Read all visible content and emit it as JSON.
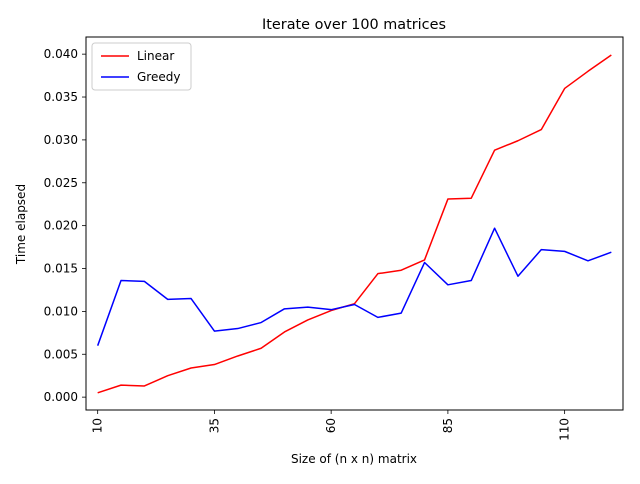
{
  "chart_data": {
    "type": "line",
    "title": "Iterate over 100 matrices",
    "xlabel": "Size of (n x n) matrix",
    "ylabel": "Time elapsed",
    "x": [
      10,
      15,
      20,
      25,
      30,
      35,
      40,
      45,
      50,
      55,
      60,
      65,
      70,
      75,
      80,
      85,
      90,
      95,
      100,
      105,
      110,
      115,
      120
    ],
    "xlim": [
      7.5,
      122.5
    ],
    "ylim": [
      -0.0015,
      0.042
    ],
    "xticks": [
      10,
      35,
      60,
      85,
      110
    ],
    "xtick_labels": [
      "10",
      "35",
      "60",
      "85",
      "110"
    ],
    "yticks": [
      0,
      0.005,
      0.01,
      0.015,
      0.02,
      0.025,
      0.03,
      0.035,
      0.04
    ],
    "ytick_labels": [
      "0.000",
      "0.005",
      "0.010",
      "0.015",
      "0.020",
      "0.025",
      "0.030",
      "0.035",
      "0.040"
    ],
    "grid": false,
    "legend_position": "top-left",
    "series": [
      {
        "name": "Linear",
        "color": "#ff0000",
        "values": [
          0.0005,
          0.0014,
          0.0013,
          0.0025,
          0.0034,
          0.0038,
          0.0048,
          0.0057,
          0.0076,
          0.009,
          0.0101,
          0.0109,
          0.0144,
          0.0148,
          0.016,
          0.0231,
          0.0232,
          0.0288,
          0.0299,
          0.0312,
          0.036,
          0.038,
          0.0399
        ]
      },
      {
        "name": "Greedy",
        "color": "#0000ff",
        "values": [
          0.006,
          0.0136,
          0.0135,
          0.0114,
          0.0115,
          0.0077,
          0.008,
          0.0087,
          0.0103,
          0.0105,
          0.0102,
          0.0108,
          0.0093,
          0.0098,
          0.0157,
          0.0131,
          0.0136,
          0.0197,
          0.0141,
          0.0172,
          0.017,
          0.0159,
          0.0169
        ]
      }
    ]
  }
}
